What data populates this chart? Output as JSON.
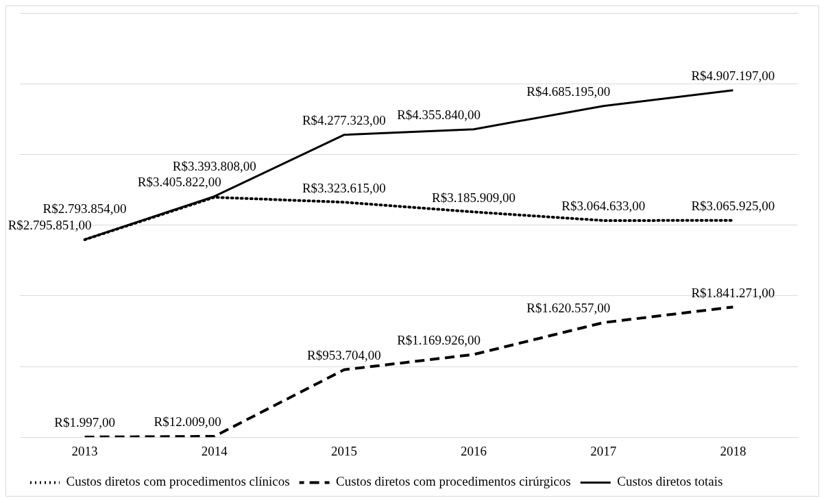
{
  "chart_data": {
    "type": "line",
    "categories": [
      "2013",
      "2014",
      "2015",
      "2016",
      "2017",
      "2018"
    ],
    "series": [
      {
        "name": "Custos diretos com procedimentos clínicos",
        "color": "#000000",
        "line_style": "dotted",
        "values": [
          2793854,
          3393808,
          3323615,
          3185909,
          3064633,
          3065925
        ],
        "value_labels": [
          "R$2.793.854,00",
          "R$3.393.808,00",
          "R$3.323.615,00",
          "R$3.185.909,00",
          "R$3.064.633,00",
          "R$3.065.925,00"
        ]
      },
      {
        "name": "Custos diretos com procedimentos cirúrgicos",
        "color": "#000000",
        "line_style": "dashed",
        "values": [
          1997,
          12009,
          953704,
          1169926,
          1620557,
          1841271
        ],
        "value_labels": [
          "R$1.997,00",
          "R$12.009,00",
          "R$953.704,00",
          "R$1.169.926,00",
          "R$1.620.557,00",
          "R$1.841.271,00"
        ]
      },
      {
        "name": "Custos diretos totais",
        "color": "#000000",
        "line_style": "solid",
        "values": [
          2795851,
          3405822,
          4277323,
          4355840,
          4685195,
          4907197
        ],
        "value_labels": [
          "R$2.795.851,00",
          "R$3.405.822,00",
          "R$4.277.323,00",
          "R$4.355.840,00",
          "R$4.685.195,00",
          "R$4.907.197,00"
        ]
      }
    ],
    "ylim": [
      0,
      6000000
    ],
    "yticks": [
      {
        "value": 0,
        "label": null
      },
      {
        "value": 1000000,
        "label": null
      },
      {
        "value": 2000000,
        "label": null
      },
      {
        "value": 3000000,
        "label": null
      },
      {
        "value": 4000000,
        "label": null
      },
      {
        "value": 5000000,
        "label": null
      },
      {
        "value": 6000000,
        "label": null
      }
    ],
    "grid": "y",
    "legend": "bottom",
    "marker": "none"
  }
}
